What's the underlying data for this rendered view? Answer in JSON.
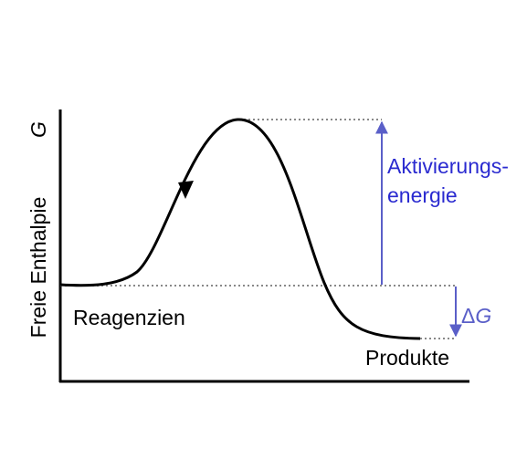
{
  "axis_label": {
    "text": "Freie Enthalpie",
    "symbol": "G"
  },
  "annotations": {
    "activation_energy": [
      "Aktivierungs-",
      "energie"
    ],
    "delta_g": {
      "delta": "Δ",
      "symbol": "G"
    }
  },
  "labels": {
    "reactants": "Reagenzien",
    "products": "Produkte"
  }
}
